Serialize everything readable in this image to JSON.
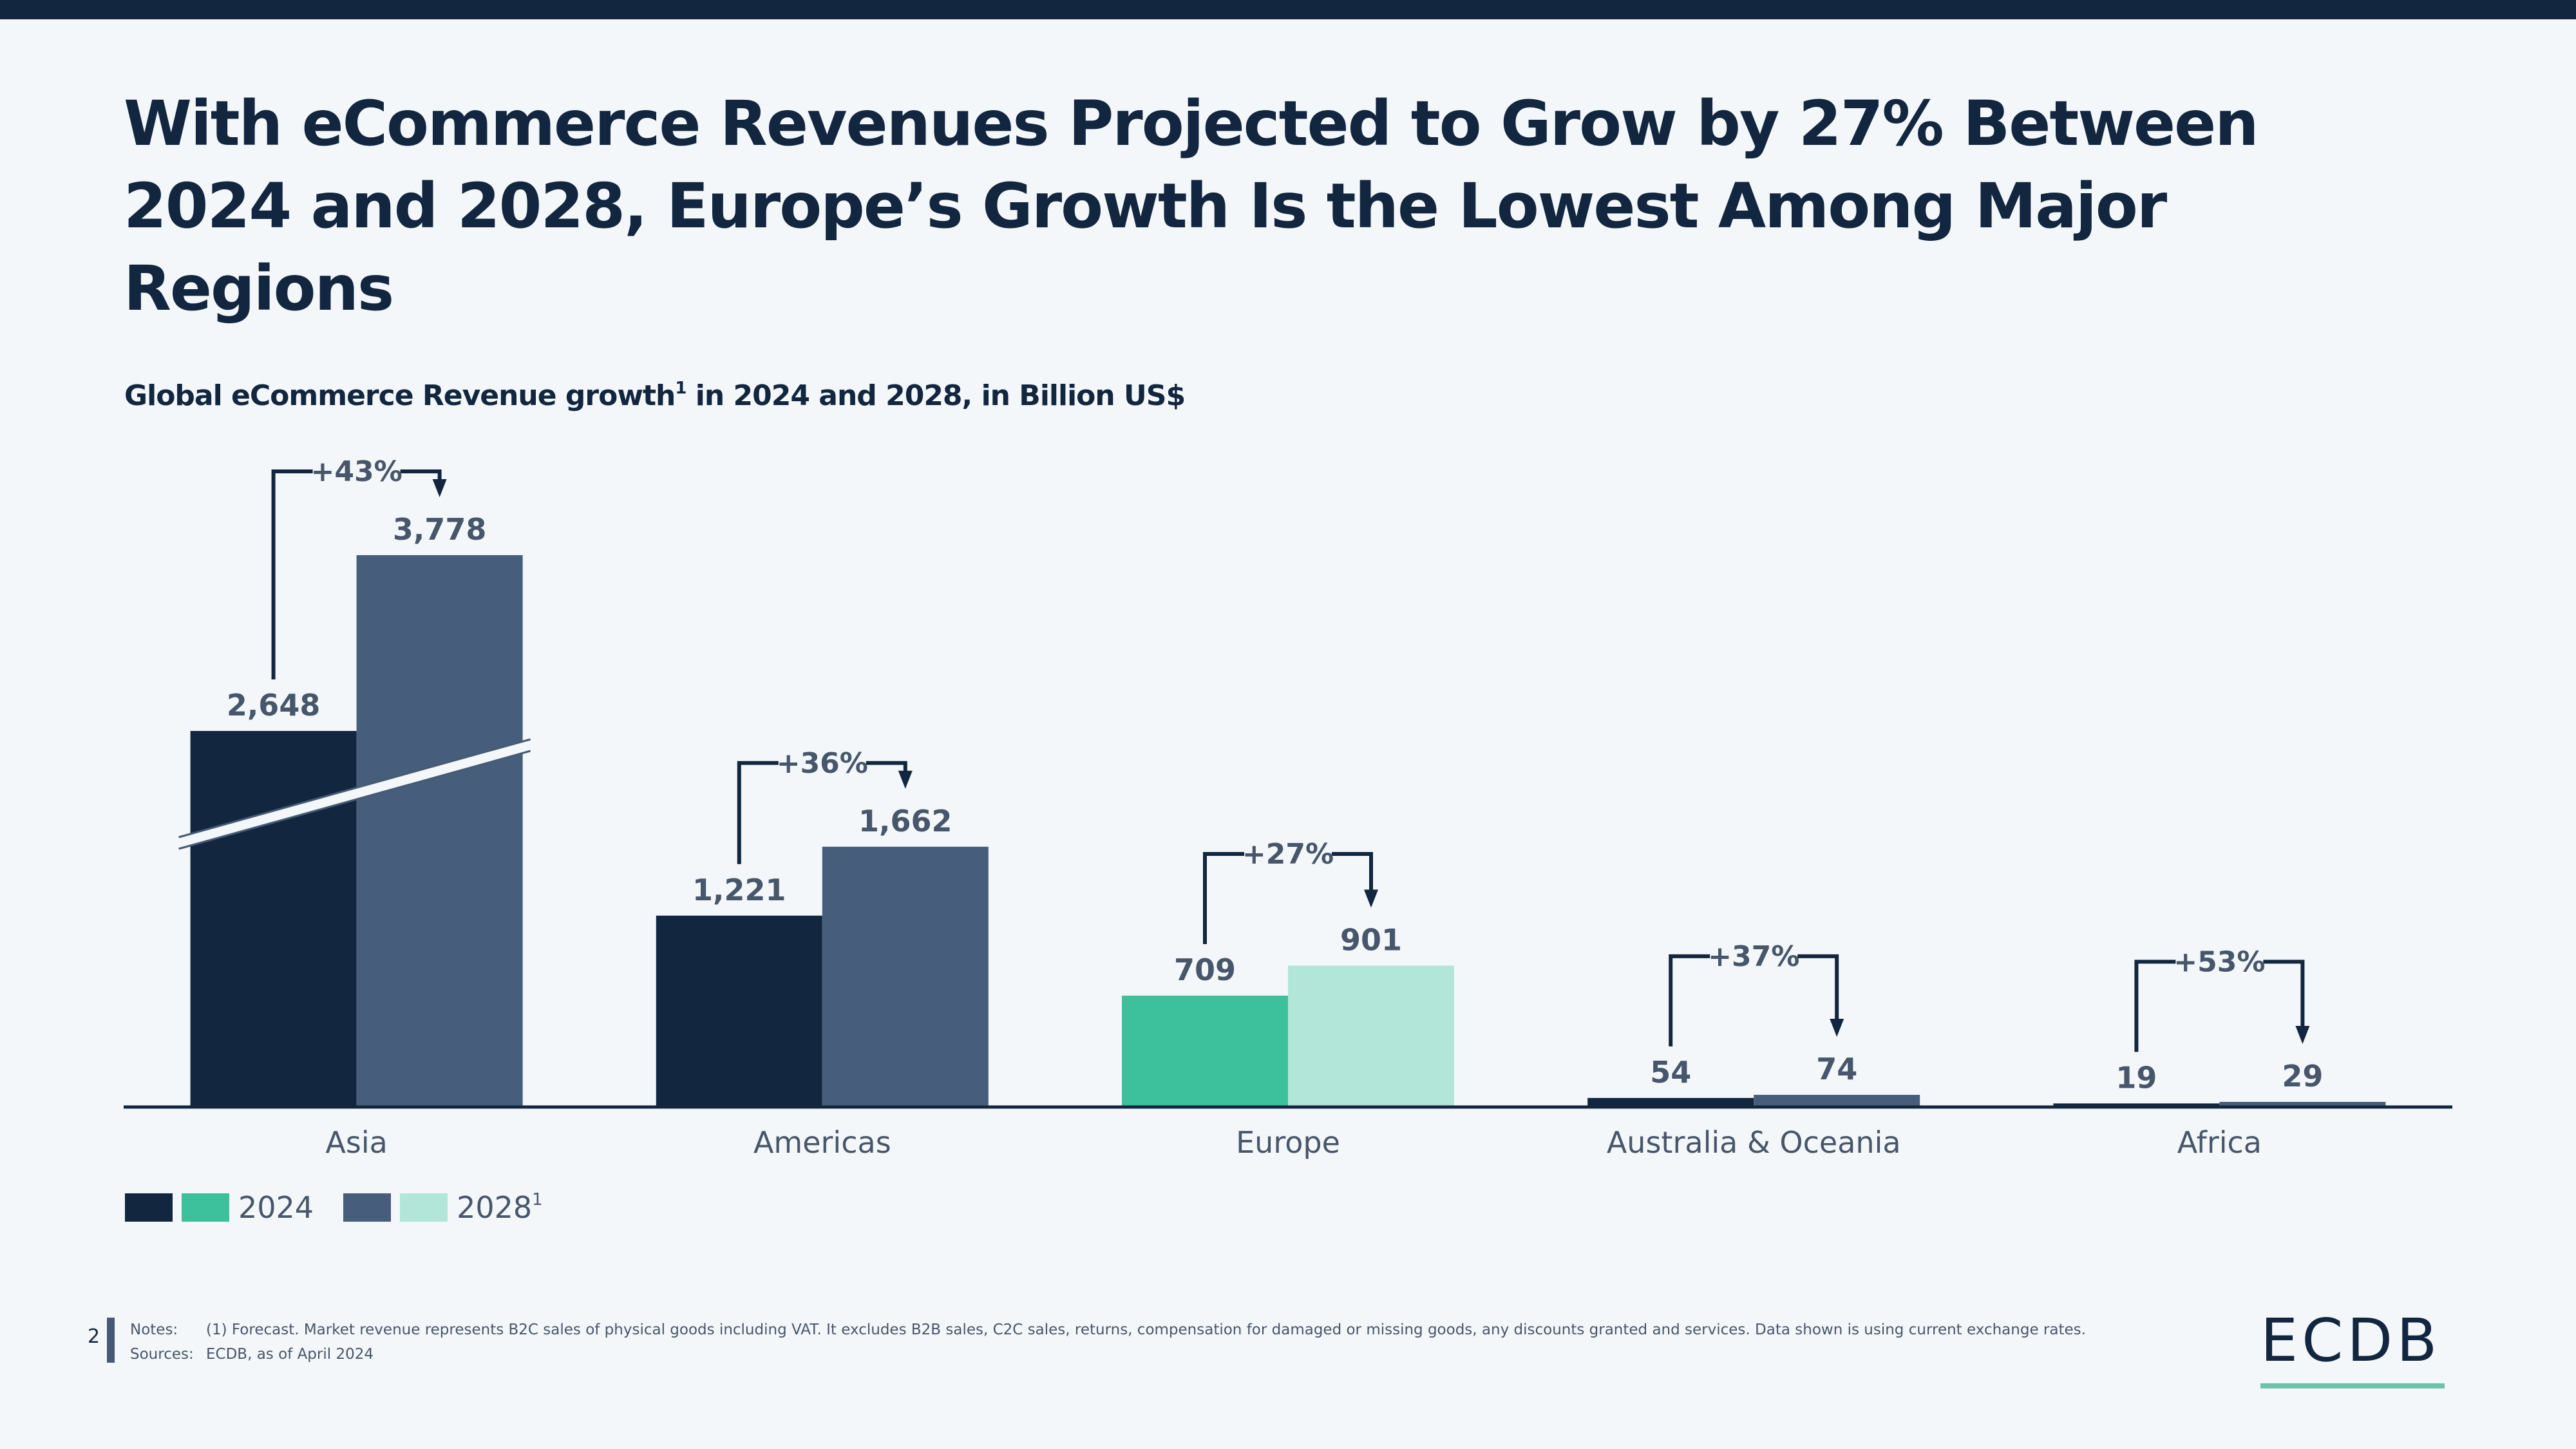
{
  "page": {
    "title": "With eCommerce Revenues Projected to Grow by 27% Between 2024 and 2028, Europe’s Growth Is the Lowest Among Major Regions",
    "subtitle_main": "Global eCommerce Revenue growth",
    "subtitle_sup": "1",
    "subtitle_rest": " in 2024 and 2028, in Billion US$",
    "page_number": "2",
    "notes_label": "Notes:",
    "notes_text": "(1) Forecast. Market revenue represents B2C sales of physical goods including VAT. It excludes B2B sales, C2C sales, returns, compensation for damaged or missing goods, any discounts granted and services. Data shown is using current exchange rates.",
    "sources_label": "Sources:",
    "sources_text": "ECDB, as of April 2024",
    "logo_text": "ECDB"
  },
  "colors": {
    "y2024": "#12263f",
    "y2028": "#465e7b",
    "europe2024": "#3dc19c",
    "europe2028": "#b1e6d8",
    "label": "#47566a",
    "axis": "#12263f",
    "accent": "#6cc4a8"
  },
  "legend": [
    {
      "label": "2024",
      "sup": "",
      "swatches": [
        "#12263f",
        "#3dc19c"
      ]
    },
    {
      "label": "2028",
      "sup": "1",
      "swatches": [
        "#465e7b",
        "#b1e6d8"
      ]
    }
  ],
  "chart_data": {
    "type": "bar",
    "title": "Global eCommerce Revenue growth¹ in 2024 and 2028, in Billion US$",
    "xlabel": "",
    "ylabel": "",
    "categories": [
      "Asia",
      "Americas",
      "Europe",
      "Australia & Oceania",
      "Africa"
    ],
    "series": [
      {
        "name": "2024",
        "values": [
          2648,
          1221,
          709,
          54,
          19
        ],
        "labels": [
          "2,648",
          "1,221",
          "709",
          "54",
          "19"
        ]
      },
      {
        "name": "2028¹",
        "values": [
          3778,
          1662,
          901,
          74,
          29
        ],
        "labels": [
          "3,778",
          "1,662",
          "901",
          "74",
          "29"
        ]
      }
    ],
    "growth_labels": [
      "+43%",
      "+36%",
      "+27%",
      "+37%",
      "+53%"
    ],
    "highlight_category": "Europe",
    "axis_break": {
      "category": "Asia",
      "note": "Asia bars truncated with a diagonal axis break"
    },
    "grid": false,
    "legend_position": "bottom-left"
  }
}
